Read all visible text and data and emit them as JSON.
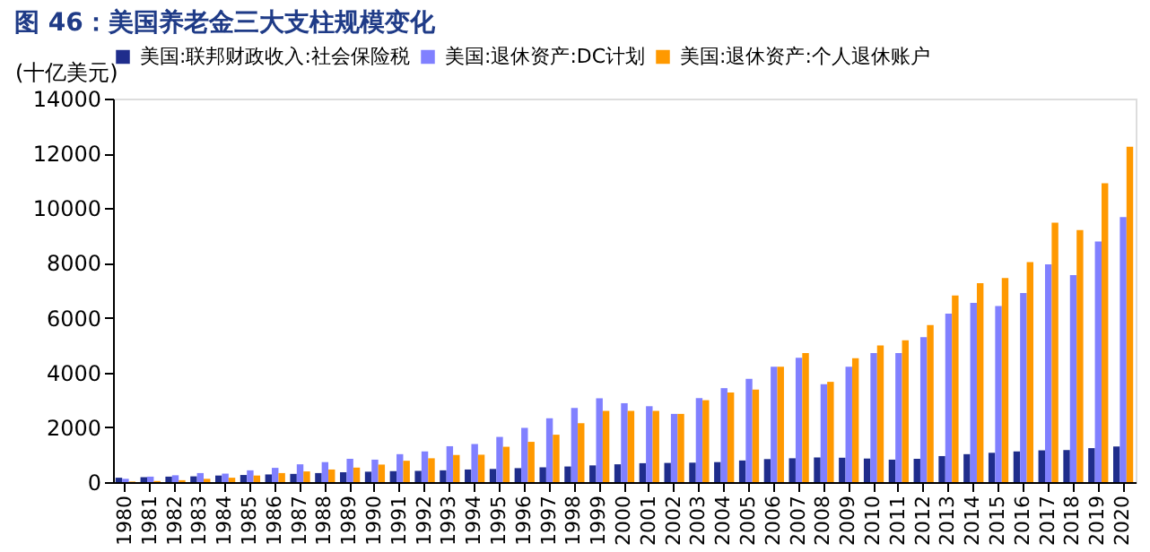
{
  "chart_data": {
    "type": "bar",
    "title": "图 46：美国养老金三大支柱规模变化",
    "ylabel": "(十亿美元)",
    "categories": [
      "1980",
      "1981",
      "1982",
      "1983",
      "1984",
      "1985",
      "1986",
      "1987",
      "1988",
      "1989",
      "1990",
      "1991",
      "1992",
      "1993",
      "1994",
      "1995",
      "1996",
      "1997",
      "1998",
      "1999",
      "2000",
      "2001",
      "2002",
      "2003",
      "2004",
      "2005",
      "2006",
      "2007",
      "2008",
      "2009",
      "2010",
      "2011",
      "2012",
      "2013",
      "2014",
      "2015",
      "2016",
      "2017",
      "2018",
      "2019",
      "2020"
    ],
    "series": [
      {
        "name": "美国:联邦财政收入:社会保险税",
        "color": "#1f2d8c",
        "values": [
          160,
          180,
          200,
          210,
          240,
          260,
          280,
          300,
          330,
          360,
          380,
          400,
          410,
          430,
          460,
          480,
          510,
          540,
          570,
          610,
          650,
          690,
          700,
          710,
          730,
          790,
          840,
          870,
          900,
          890,
          860,
          820,
          850,
          950,
          1020,
          1070,
          1120,
          1160,
          1170,
          1240,
          1300
        ]
      },
      {
        "name": "美国:退休资产:DC计划",
        "color": "#8080ff",
        "values": [
          120,
          200,
          250,
          330,
          310,
          430,
          520,
          650,
          730,
          850,
          820,
          1020,
          1120,
          1310,
          1390,
          1650,
          1980,
          2330,
          2710,
          3060,
          2880,
          2770,
          2490,
          3070,
          3430,
          3770,
          4210,
          4540,
          3570,
          4210,
          4710,
          4710,
          5290,
          6150,
          6540,
          6430,
          6900,
          7950,
          7560,
          8780,
          9670
        ]
      },
      {
        "name": "美国:退休资产:个人退休账户",
        "color": "#ff9900",
        "values": [
          20,
          40,
          70,
          120,
          160,
          240,
          330,
          390,
          460,
          530,
          640,
          780,
          870,
          990,
          1000,
          1290,
          1470,
          1730,
          2150,
          2600,
          2600,
          2600,
          2490,
          2990,
          3270,
          3380,
          4210,
          4710,
          3660,
          4520,
          4990,
          5180,
          5730,
          6810,
          7260,
          7450,
          8030,
          9470,
          9200,
          10910,
          12240
        ]
      }
    ],
    "ylim": [
      0,
      14000
    ],
    "yticks": [
      0,
      2000,
      4000,
      6000,
      8000,
      10000,
      12000,
      14000
    ],
    "grid": false,
    "legend": "top"
  }
}
